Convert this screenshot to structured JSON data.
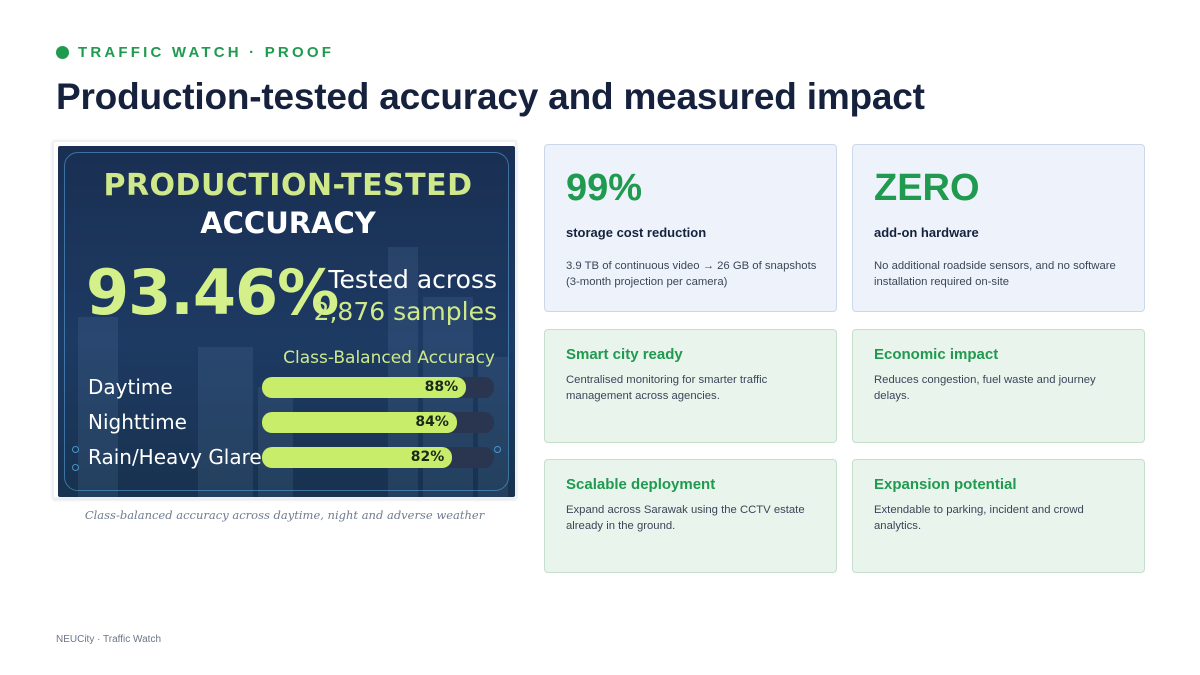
{
  "header": {
    "eyebrow": "TRAFFIC WATCH · PROOF",
    "title": "Production-tested accuracy and measured impact"
  },
  "image_panel": {
    "heading_line1": "PRODUCTION-TESTED",
    "heading_line2": "ACCURACY",
    "big_value": "93.46%",
    "tested_line1": "Tested across",
    "tested_line2": "2,876 samples",
    "subheading": "Class-Balanced Accuracy",
    "bars": [
      {
        "label": "Daytime",
        "value": 88,
        "value_label": "88%"
      },
      {
        "label": "Nighttime",
        "value": 84,
        "value_label": "84%"
      },
      {
        "label": "Rain/Heavy Glare",
        "value": 82,
        "value_label": "82%"
      }
    ],
    "caption": "Class-balanced accuracy across daytime, night and adverse weather"
  },
  "stats": [
    {
      "big": "99%",
      "sub": "storage cost reduction",
      "desc": "3.9 TB of continuous video → 26 GB of snapshots (3-month projection per camera)"
    },
    {
      "big": "ZERO",
      "sub": "add-on hardware",
      "desc": "No additional roadside sensors, and no software installation required on-site"
    }
  ],
  "cards": [
    {
      "title": "Smart city ready",
      "desc": "Centralised monitoring for smarter traffic management across agencies."
    },
    {
      "title": "Economic impact",
      "desc": "Reduces congestion, fuel waste and journey delays."
    },
    {
      "title": "Scalable deployment",
      "desc": "Expand across Sarawak using the CCTV estate already in the ground."
    },
    {
      "title": "Expansion potential",
      "desc": "Extendable to parking, incident and crowd analytics."
    }
  ],
  "footer": "NEUCity · Traffic Watch",
  "colors": {
    "accent": "#1f9a4e",
    "navy": "#16223d",
    "bar_fill": "#c8ed6b"
  }
}
